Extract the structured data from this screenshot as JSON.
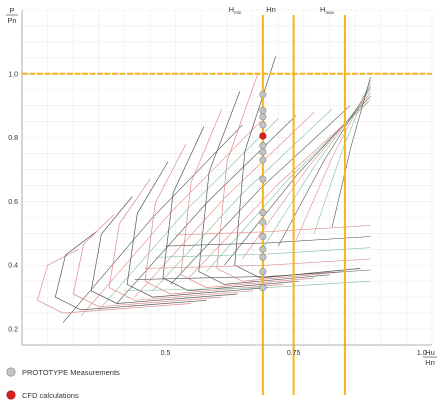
{
  "chart_data": {
    "type": "scatter",
    "title": "",
    "y_axis": {
      "label_numerator": "P",
      "label_denominator": "Pn",
      "range": [
        0.15,
        1.2
      ],
      "ticks": [
        "0.2",
        "0.4",
        "0.6",
        "0.8",
        "1.0"
      ]
    },
    "x_axis": {
      "label_numerator": "Hu",
      "label_denominator": "Hn",
      "range": [
        0.22,
        1.02
      ],
      "ticks": [
        "0.5",
        "0.75",
        "1.0"
      ]
    },
    "grid": true,
    "reference_lines": {
      "horizontal": [
        {
          "y": 1.0,
          "color": "#f5b41a"
        }
      ],
      "vertical": [
        {
          "x": 0.69,
          "label": "H",
          "sub": "min",
          "color": "#f5b41a"
        },
        {
          "x": 0.75,
          "label": "Hn",
          "sub": "",
          "color": "#f5b41a"
        },
        {
          "x": 0.85,
          "label": "H",
          "sub": "max",
          "color": "#f5b41a"
        }
      ]
    },
    "series": [
      {
        "name": "PROTOTYPE Measurements",
        "color": "#c4c4c4",
        "x": [
          0.69,
          0.69,
          0.69,
          0.69,
          0.69,
          0.69,
          0.69,
          0.69,
          0.69,
          0.69,
          0.69,
          0.69,
          0.69,
          0.69,
          0.69,
          0.69
        ],
        "y": [
          0.935,
          0.885,
          0.865,
          0.84,
          0.775,
          0.755,
          0.73,
          0.67,
          0.565,
          0.535,
          0.49,
          0.45,
          0.425,
          0.38,
          0.33,
          0.33
        ]
      },
      {
        "name": "CFD calculations",
        "color": "#d92020",
        "x": [
          0.69
        ],
        "y": [
          0.805
        ]
      }
    ],
    "curve_colors": [
      "#555555",
      "#e08a8a",
      "#7fbf9f"
    ]
  }
}
